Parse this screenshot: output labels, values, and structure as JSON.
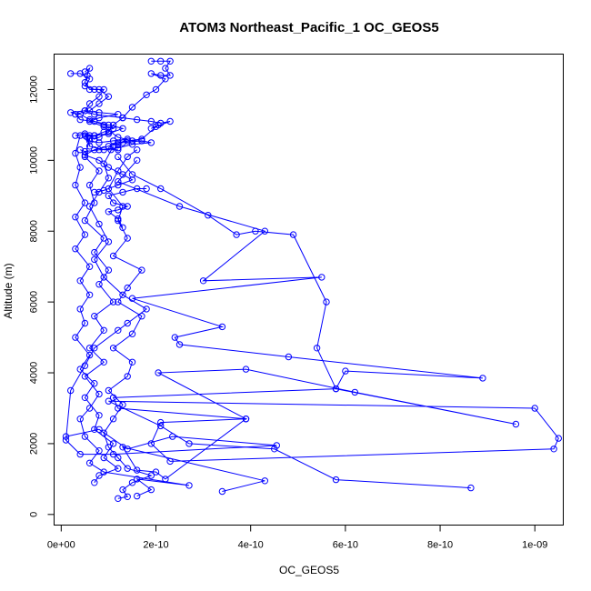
{
  "chart_data": {
    "type": "scatter",
    "title": "ATOM3 Northeast_Pacific_1 OC_GEOS5",
    "xlabel": "OC_GEOS5",
    "ylabel": "Altitude (m)",
    "xlim": [
      -1.5e-11,
      1.06e-09
    ],
    "ylim": [
      -300,
      13000
    ],
    "x_ticks": [
      0,
      2e-10,
      4e-10,
      6e-10,
      8e-10,
      1e-09
    ],
    "x_tick_labels": [
      "0e+00",
      "2e-10",
      "4e-10",
      "6e-10",
      "8e-10",
      "1e-09"
    ],
    "y_ticks": [
      0,
      2000,
      4000,
      6000,
      8000,
      10000,
      12000
    ],
    "y_tick_labels": [
      "0",
      "2000",
      "4000",
      "6000",
      "8000",
      "10000",
      "12000"
    ],
    "grid": false,
    "color": "#0000ff",
    "marker": "open-circle",
    "connected": true,
    "series": [
      {
        "points": [
          [
            1.2e-10,
            450
          ],
          [
            1.4e-10,
            500
          ],
          [
            1.3e-10,
            700
          ],
          [
            1.5e-10,
            900
          ],
          [
            1.9e-10,
            1100
          ],
          [
            1.4e-10,
            1300
          ],
          [
            1.2e-10,
            1600
          ],
          [
            1e-10,
            1900
          ],
          [
            9e-11,
            2300
          ],
          [
            1.1e-10,
            2700
          ],
          [
            1.3e-10,
            3100
          ],
          [
            1e-10,
            3500
          ],
          [
            1.4e-10,
            3900
          ],
          [
            1.5e-10,
            4300
          ],
          [
            1.1e-10,
            4700
          ],
          [
            1.5e-10,
            5100
          ],
          [
            1.7e-10,
            5600
          ],
          [
            1.2e-10,
            6000
          ],
          [
            1.4e-10,
            6400
          ],
          [
            1.7e-10,
            6900
          ],
          [
            1.1e-10,
            7300
          ],
          [
            1.4e-10,
            7800
          ],
          [
            1.2e-10,
            8300
          ],
          [
            1.3e-10,
            8700
          ],
          [
            1e-10,
            9200
          ],
          [
            1.2e-10,
            9700
          ],
          [
            1.4e-10,
            10100
          ],
          [
            1.6e-10,
            10300
          ]
        ]
      },
      {
        "points": [
          [
            8.65e-10,
            750
          ],
          [
            5.8e-10,
            980
          ],
          [
            4.5e-10,
            1850
          ],
          [
            2.7e-10,
            2000
          ],
          [
            2.1e-10,
            2500
          ],
          [
            1e-10,
            3200
          ],
          [
            1e-09,
            3000
          ],
          [
            1.05e-09,
            2150
          ],
          [
            1.04e-09,
            1850
          ],
          [
            2.3e-10,
            1500
          ],
          [
            1.9e-10,
            2000
          ],
          [
            2.1e-10,
            2600
          ],
          [
            3.9e-10,
            2700
          ],
          [
            2.05e-10,
            4000
          ],
          [
            3.9e-10,
            4100
          ],
          [
            6.2e-10,
            3450
          ],
          [
            9.6e-10,
            2550
          ],
          [
            5.8e-10,
            3550
          ],
          [
            6e-10,
            4050
          ],
          [
            8.9e-10,
            3850
          ],
          [
            4.8e-10,
            4450
          ],
          [
            2.5e-10,
            4800
          ],
          [
            2.4e-10,
            5000
          ],
          [
            3.4e-10,
            5300
          ],
          [
            1.5e-10,
            6100
          ],
          [
            5.5e-10,
            6700
          ],
          [
            3e-10,
            6600
          ],
          [
            4.3e-10,
            8000
          ],
          [
            2.5e-10,
            8700
          ],
          [
            1.2e-10,
            9400
          ],
          [
            1.6e-10,
            10000
          ]
        ]
      },
      {
        "points": [
          [
            3.4e-10,
            650
          ],
          [
            4.3e-10,
            950
          ],
          [
            1.3e-10,
            1900
          ],
          [
            1.6e-10,
            1250
          ],
          [
            2e-10,
            1200
          ],
          [
            2.2e-10,
            1000
          ],
          [
            3.9e-10,
            2700
          ],
          [
            1.2e-10,
            3000
          ],
          [
            1.1e-10,
            3300
          ],
          [
            5.8e-10,
            3550
          ],
          [
            5.4e-10,
            4700
          ],
          [
            5.6e-10,
            6000
          ],
          [
            4.9e-10,
            7900
          ],
          [
            4.1e-10,
            8000
          ],
          [
            3.7e-10,
            7900
          ],
          [
            3.1e-10,
            8450
          ],
          [
            2.1e-10,
            9200
          ],
          [
            1.5e-10,
            9600
          ],
          [
            1.2e-10,
            10100
          ]
        ]
      },
      {
        "points": [
          [
            1e-11,
            2200
          ],
          [
            8e-11,
            2400
          ],
          [
            1.4e-10,
            1850
          ],
          [
            2.35e-10,
            2200
          ],
          [
            4.55e-10,
            1950
          ],
          [
            1.1e-10,
            1700
          ],
          [
            4e-11,
            1700
          ],
          [
            1e-11,
            2100
          ],
          [
            2e-11,
            3500
          ],
          [
            5e-11,
            4200
          ],
          [
            7e-11,
            4700
          ],
          [
            1.2e-10,
            5200
          ],
          [
            1.4e-10,
            5400
          ],
          [
            1.8e-10,
            5800
          ],
          [
            1.3e-10,
            6200
          ],
          [
            9e-11,
            6700
          ],
          [
            7e-11,
            7200
          ],
          [
            1e-10,
            7700
          ],
          [
            8e-11,
            8200
          ],
          [
            6e-11,
            8700
          ],
          [
            8e-11,
            9100
          ],
          [
            1e-10,
            9500
          ],
          [
            9e-11,
            9900
          ],
          [
            1.1e-10,
            10400
          ]
        ]
      },
      {
        "points": [
          [
            1.6e-10,
            520
          ],
          [
            1.9e-10,
            700
          ],
          [
            1.6e-10,
            1000
          ],
          [
            2.7e-10,
            820
          ],
          [
            9e-11,
            1200
          ],
          [
            6e-11,
            1450
          ],
          [
            8e-11,
            1800
          ],
          [
            5e-11,
            2200
          ],
          [
            4e-11,
            2700
          ],
          [
            6e-11,
            3000
          ],
          [
            8e-11,
            3400
          ],
          [
            5e-11,
            3900
          ],
          [
            9e-11,
            4300
          ],
          [
            6e-11,
            4700
          ],
          [
            9e-11,
            5200
          ],
          [
            7e-11,
            5600
          ],
          [
            1.1e-10,
            6000
          ],
          [
            8e-11,
            6500
          ],
          [
            1e-10,
            6900
          ],
          [
            7e-11,
            7400
          ],
          [
            9e-11,
            7800
          ],
          [
            5e-11,
            8300
          ],
          [
            7e-11,
            8800
          ],
          [
            6e-11,
            9300
          ],
          [
            8e-11,
            9700
          ],
          [
            5e-11,
            10100
          ],
          [
            6e-11,
            10600
          ]
        ]
      },
      {
        "points": [
          [
            7e-11,
            900
          ],
          [
            8e-11,
            1100
          ],
          [
            1.2e-10,
            1300
          ],
          [
            9e-11,
            1600
          ],
          [
            1.1e-10,
            2000
          ],
          [
            7e-11,
            2400
          ],
          [
            8e-11,
            2800
          ],
          [
            5e-11,
            3300
          ],
          [
            7e-11,
            3700
          ],
          [
            4e-11,
            4100
          ],
          [
            6e-11,
            4500
          ],
          [
            3e-11,
            5000
          ],
          [
            5e-11,
            5400
          ],
          [
            4e-11,
            5800
          ],
          [
            6e-11,
            6200
          ],
          [
            4e-11,
            6600
          ],
          [
            6e-11,
            7000
          ],
          [
            3e-11,
            7500
          ],
          [
            5e-11,
            7900
          ],
          [
            3e-11,
            8400
          ],
          [
            5e-11,
            8800
          ],
          [
            3e-11,
            9300
          ],
          [
            4e-11,
            9800
          ],
          [
            3e-11,
            10200
          ],
          [
            4e-11,
            10700
          ]
        ]
      },
      {
        "points": [
          [
            3e-11,
            10700
          ],
          [
            5e-11,
            10750
          ],
          [
            7e-11,
            10700
          ],
          [
            9e-11,
            10800
          ],
          [
            1.1e-10,
            10900
          ],
          [
            9e-11,
            11000
          ],
          [
            6e-11,
            11150
          ],
          [
            4e-11,
            11300
          ],
          [
            2e-11,
            11350
          ],
          [
            5e-11,
            11400
          ],
          [
            8e-11,
            11350
          ],
          [
            1.2e-10,
            11300
          ],
          [
            8e-11,
            11200
          ],
          [
            6e-11,
            11100
          ],
          [
            9e-11,
            10950
          ],
          [
            1.2e-10,
            10650
          ],
          [
            1.5e-10,
            10550
          ],
          [
            1.7e-10,
            10550
          ],
          [
            1.9e-10,
            10500
          ],
          [
            1.5e-10,
            10450
          ],
          [
            1.2e-10,
            10350
          ],
          [
            8e-11,
            10300
          ],
          [
            5e-11,
            10250
          ],
          [
            4e-11,
            10300
          ]
        ]
      },
      {
        "points": [
          [
            2e-11,
            12450
          ],
          [
            4e-11,
            12450
          ],
          [
            6e-11,
            12300
          ],
          [
            5e-11,
            12100
          ],
          [
            7e-11,
            12000
          ],
          [
            9e-11,
            12000
          ],
          [
            8e-11,
            11800
          ],
          [
            6e-11,
            11600
          ],
          [
            5e-11,
            11400
          ],
          [
            7e-11,
            11300
          ],
          [
            1.3e-10,
            11200
          ],
          [
            1.6e-10,
            11150
          ],
          [
            1.9e-10,
            11100
          ],
          [
            2.1e-10,
            11050
          ],
          [
            2.3e-10,
            11100
          ],
          [
            2e-10,
            10950
          ],
          [
            1.9e-10,
            10900
          ],
          [
            2.05e-10,
            11000
          ],
          [
            1.7e-10,
            10600
          ],
          [
            1.4e-10,
            10550
          ],
          [
            1.2e-10,
            10500
          ],
          [
            1e-10,
            10400
          ]
        ]
      },
      {
        "points": [
          [
            1.9e-10,
            12800
          ],
          [
            2.1e-10,
            12800
          ],
          [
            2.3e-10,
            12800
          ],
          [
            2.2e-10,
            12600
          ],
          [
            2.3e-10,
            12400
          ],
          [
            2.1e-10,
            12400
          ],
          [
            1.9e-10,
            12450
          ],
          [
            2.2e-10,
            12300
          ],
          [
            2e-10,
            12000
          ],
          [
            1.8e-10,
            11850
          ],
          [
            1.5e-10,
            11500
          ],
          [
            1.3e-10,
            11200
          ],
          [
            1.1e-10,
            11000
          ],
          [
            1e-10,
            10800
          ],
          [
            8e-11,
            10650
          ],
          [
            7e-11,
            10600
          ],
          [
            6e-11,
            10700
          ],
          [
            5.5e-11,
            10650
          ],
          [
            6e-11,
            10400
          ],
          [
            9e-11,
            10300
          ],
          [
            1.05e-10,
            10300
          ],
          [
            1.2e-10,
            10300
          ]
        ]
      },
      {
        "points": [
          [
            5e-11,
            12500
          ],
          [
            6e-11,
            12600
          ],
          [
            5.5e-11,
            12400
          ],
          [
            5e-11,
            12200
          ],
          [
            6e-11,
            12000
          ],
          [
            8e-11,
            12000
          ],
          [
            1e-10,
            11800
          ],
          [
            8e-11,
            11600
          ],
          [
            6e-11,
            11400
          ],
          [
            3e-11,
            11300
          ],
          [
            4e-11,
            11150
          ],
          [
            7e-11,
            11100
          ],
          [
            1e-10,
            11000
          ],
          [
            1.3e-10,
            10900
          ],
          [
            1e-10,
            10750
          ],
          [
            7e-11,
            10700
          ],
          [
            5e-11,
            10700
          ],
          [
            6e-11,
            10550
          ],
          [
            8e-11,
            10500
          ],
          [
            1.1e-10,
            10550
          ],
          [
            1.4e-10,
            10600
          ],
          [
            1.2e-10,
            10450
          ]
        ]
      },
      {
        "points": [
          [
            7e-11,
            9100
          ],
          [
            9e-11,
            9150
          ],
          [
            1.2e-10,
            9300
          ],
          [
            1.5e-10,
            9450
          ],
          [
            1.3e-10,
            9600
          ],
          [
            1e-10,
            9800
          ],
          [
            8e-11,
            10000
          ],
          [
            5e-11,
            10150
          ],
          [
            7e-11,
            10300
          ],
          [
            1.3e-10,
            10500
          ],
          [
            1.7e-10,
            10550
          ]
        ]
      },
      {
        "points": [
          [
            1.3e-10,
            8100
          ],
          [
            1.2e-10,
            8350
          ],
          [
            1e-10,
            8550
          ],
          [
            1.2e-10,
            8600
          ],
          [
            1.4e-10,
            8700
          ],
          [
            1.1e-10,
            8800
          ],
          [
            1e-10,
            9000
          ],
          [
            1.3e-10,
            9100
          ],
          [
            1.6e-10,
            9200
          ],
          [
            1.8e-10,
            9200
          ]
        ]
      }
    ]
  }
}
